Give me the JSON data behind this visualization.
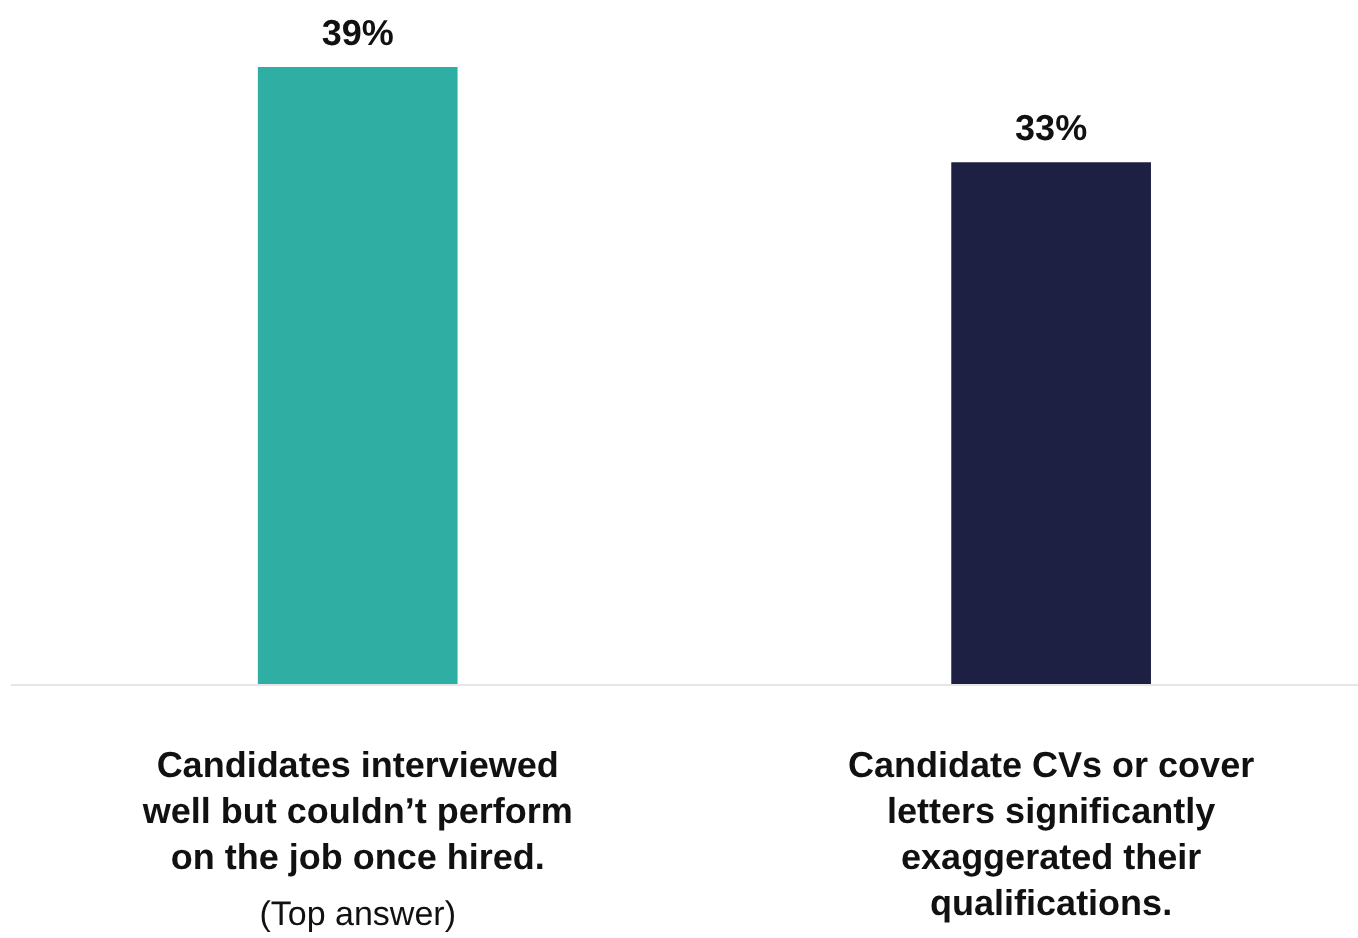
{
  "chart_data": {
    "type": "bar",
    "categories": [
      "Candidates interviewed well but couldn’t perform on the job once hired.",
      "Candidate CVs or cover letters significantly exaggerated their qualifications."
    ],
    "values": [
      39,
      33
    ],
    "colors": [
      "#2faea3",
      "#1e2043"
    ],
    "value_labels": [
      "39%",
      "33%"
    ],
    "annotations": [
      "(Top answer)"
    ]
  }
}
